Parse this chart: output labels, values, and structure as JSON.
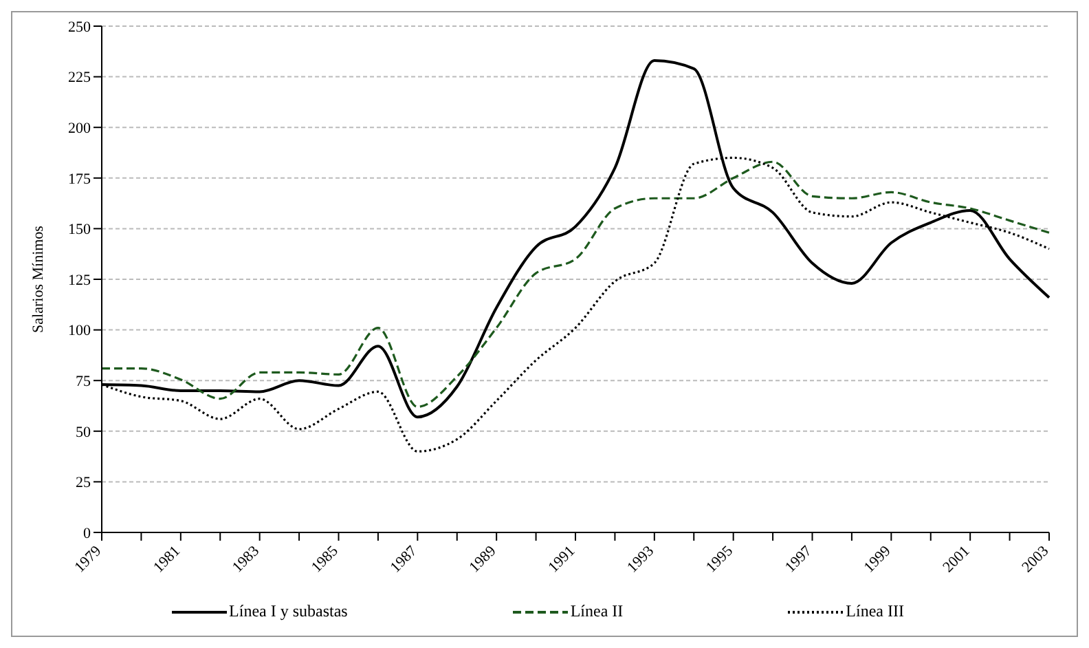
{
  "chart_data": {
    "type": "line",
    "ylabel": "Salarios Mínimos",
    "categories": [
      "1979",
      null,
      "1981",
      null,
      "1983",
      null,
      "1985",
      null,
      "1987",
      null,
      "1989",
      null,
      "1991",
      null,
      "1993",
      null,
      "1995",
      null,
      "1997",
      null,
      "1999",
      null,
      "2001",
      null,
      "2003"
    ],
    "series": [
      {
        "name": "Línea I y subastas",
        "color": "#000000",
        "line_style": "solid",
        "values": [
          73,
          72.5,
          70,
          70,
          69.5,
          75,
          72.5,
          92,
          57,
          72,
          111,
          141,
          151,
          180,
          233,
          229,
          170,
          158,
          133,
          123,
          143,
          153,
          159,
          135,
          116
        ]
      },
      {
        "name": "Línea II",
        "color": "#1e5a1e",
        "line_style": "dashed",
        "values": [
          81,
          81,
          75.5,
          66,
          79,
          79,
          78,
          101,
          62,
          77,
          101,
          128,
          135,
          160,
          165,
          165,
          175,
          183,
          166,
          165,
          168,
          163,
          160,
          154,
          148
        ]
      },
      {
        "name": "Línea III",
        "color": "#000000",
        "line_style": "dotted",
        "values": [
          73,
          67,
          65,
          56,
          66,
          51,
          61,
          69.5,
          40,
          46,
          65,
          85,
          101,
          124,
          133,
          182,
          185,
          180,
          158,
          156,
          163,
          158,
          153,
          148,
          140
        ]
      }
    ],
    "ylim": [
      0,
      250
    ],
    "yticks": [
      0,
      25,
      50,
      75,
      100,
      125,
      150,
      175,
      200,
      225,
      250
    ],
    "grid": "y",
    "legend": "bottom",
    "marker": "none"
  }
}
